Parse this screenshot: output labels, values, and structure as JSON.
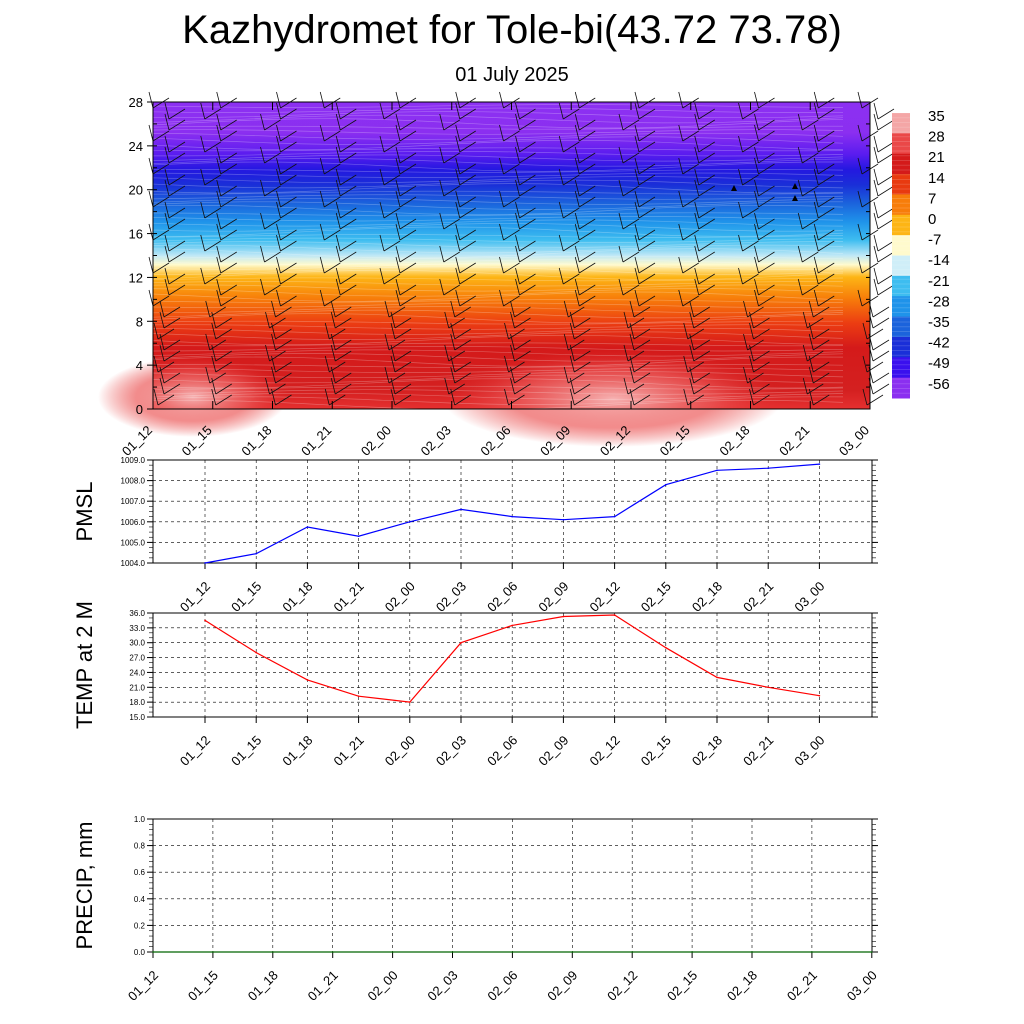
{
  "header": {
    "title": "Kazhydromet for Tole-bi(43.72 73.78)",
    "subtitle": "01 July 2025"
  },
  "chart_data": [
    {
      "type": "heatmap",
      "name": "vertical-profile",
      "x_ticks": [
        "01_12",
        "01_15",
        "01_18",
        "01_21",
        "02_00",
        "02_03",
        "02_06",
        "02_09",
        "02_12",
        "02_15",
        "02_18",
        "02_21",
        "03_00"
      ],
      "y_ticks": [
        "0",
        "4",
        "8",
        "12",
        "16",
        "20",
        "24",
        "28"
      ],
      "ylim": [
        0,
        28
      ],
      "colorbar_ticks": [
        "35",
        "28",
        "21",
        "14",
        "7",
        "0",
        "-7",
        "-14",
        "-21",
        "-28",
        "-35",
        "-42",
        "-49",
        "-56"
      ],
      "color_levels": [
        {
          "v": 35,
          "c": "#f4a6a6"
        },
        {
          "v": 28,
          "c": "#ea4848"
        },
        {
          "v": 21,
          "c": "#d41a1a"
        },
        {
          "v": 14,
          "c": "#e83a10"
        },
        {
          "v": 7,
          "c": "#f77d0a"
        },
        {
          "v": 0,
          "c": "#fdb515"
        },
        {
          "v": -7,
          "c": "#fffacd"
        },
        {
          "v": -14,
          "c": "#cfeef8"
        },
        {
          "v": -21,
          "c": "#3ebdf0"
        },
        {
          "v": -28,
          "c": "#1f93ea"
        },
        {
          "v": -35,
          "c": "#1b63dc"
        },
        {
          "v": -42,
          "c": "#1a2fd8"
        },
        {
          "v": -49,
          "c": "#3a10ee"
        },
        {
          "v": -56,
          "c": "#8b2ff0"
        }
      ]
    },
    {
      "type": "line",
      "name": "pmsl",
      "ylabel": "PMSL",
      "categories": [
        "01_12",
        "01_15",
        "01_18",
        "01_21",
        "02_00",
        "02_03",
        "02_06",
        "02_09",
        "02_12",
        "02_15",
        "02_18",
        "02_21",
        "03_00"
      ],
      "values": [
        1004.0,
        1004.45,
        1005.75,
        1005.3,
        1006.0,
        1006.6,
        1006.25,
        1006.1,
        1006.25,
        1007.8,
        1008.5,
        1008.6,
        1008.8
      ],
      "ylim": [
        1004.0,
        1009.0
      ],
      "y_ticks": [
        "1004.0",
        "1005.0",
        "1006.0",
        "1007.0",
        "1008.0",
        "1009.0"
      ],
      "line_color": "#0000ff"
    },
    {
      "type": "line",
      "name": "temp2m",
      "ylabel": "TEMP at 2 M",
      "categories": [
        "01_12",
        "01_15",
        "01_18",
        "01_21",
        "02_00",
        "02_03",
        "02_06",
        "02_09",
        "02_12",
        "02_15",
        "02_18",
        "02_21",
        "03_00"
      ],
      "values": [
        34.5,
        28.0,
        22.5,
        19.2,
        18.0,
        30.0,
        33.5,
        35.3,
        35.6,
        29.0,
        23.0,
        21.0,
        19.3
      ],
      "ylim": [
        15.0,
        36.0
      ],
      "y_ticks": [
        "15.0",
        "18.0",
        "21.0",
        "24.0",
        "27.0",
        "30.0",
        "33.0",
        "36.0"
      ],
      "line_color": "#ff0000"
    },
    {
      "type": "line",
      "name": "precip",
      "ylabel": "PRECIP, mm",
      "categories": [
        "01_12",
        "01_15",
        "01_18",
        "01_21",
        "02_00",
        "02_03",
        "02_06",
        "02_09",
        "02_12",
        "02_15",
        "02_18",
        "02_21",
        "03_00"
      ],
      "values": [
        0,
        0,
        0,
        0,
        0,
        0,
        0,
        0,
        0,
        0,
        0,
        0,
        0
      ],
      "ylim": [
        0.0,
        1.0
      ],
      "y_ticks": [
        "0.0",
        "0.2",
        "0.4",
        "0.6",
        "0.8",
        "1.0"
      ],
      "line_color": "#006400"
    }
  ]
}
